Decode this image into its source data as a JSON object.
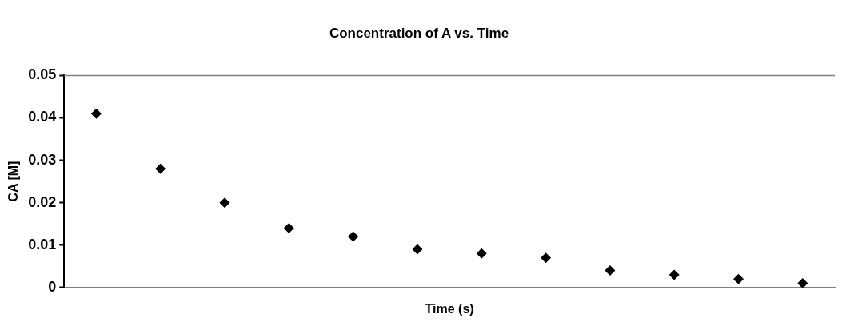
{
  "chart_data": {
    "type": "scatter",
    "title": "Concentration of A vs. Time",
    "xlabel": "Time (s)",
    "ylabel": "CA [M]",
    "categories": [
      null,
      null,
      null,
      null,
      null,
      null,
      null,
      null,
      null,
      null,
      null,
      null
    ],
    "series": [
      {
        "color": "#000000",
        "values": [
          0.041,
          0.028,
          0.02,
          0.014,
          0.012,
          0.009,
          0.008,
          0.007,
          0.004,
          0.003,
          0.002,
          0.001
        ]
      }
    ],
    "ylim": [
      0,
      0.05
    ],
    "yticks": [
      0,
      0.01,
      0.02,
      0.03,
      0.04,
      0.05
    ],
    "tick_labels": "y",
    "grid": false,
    "legend": false,
    "marker": "diamond"
  }
}
